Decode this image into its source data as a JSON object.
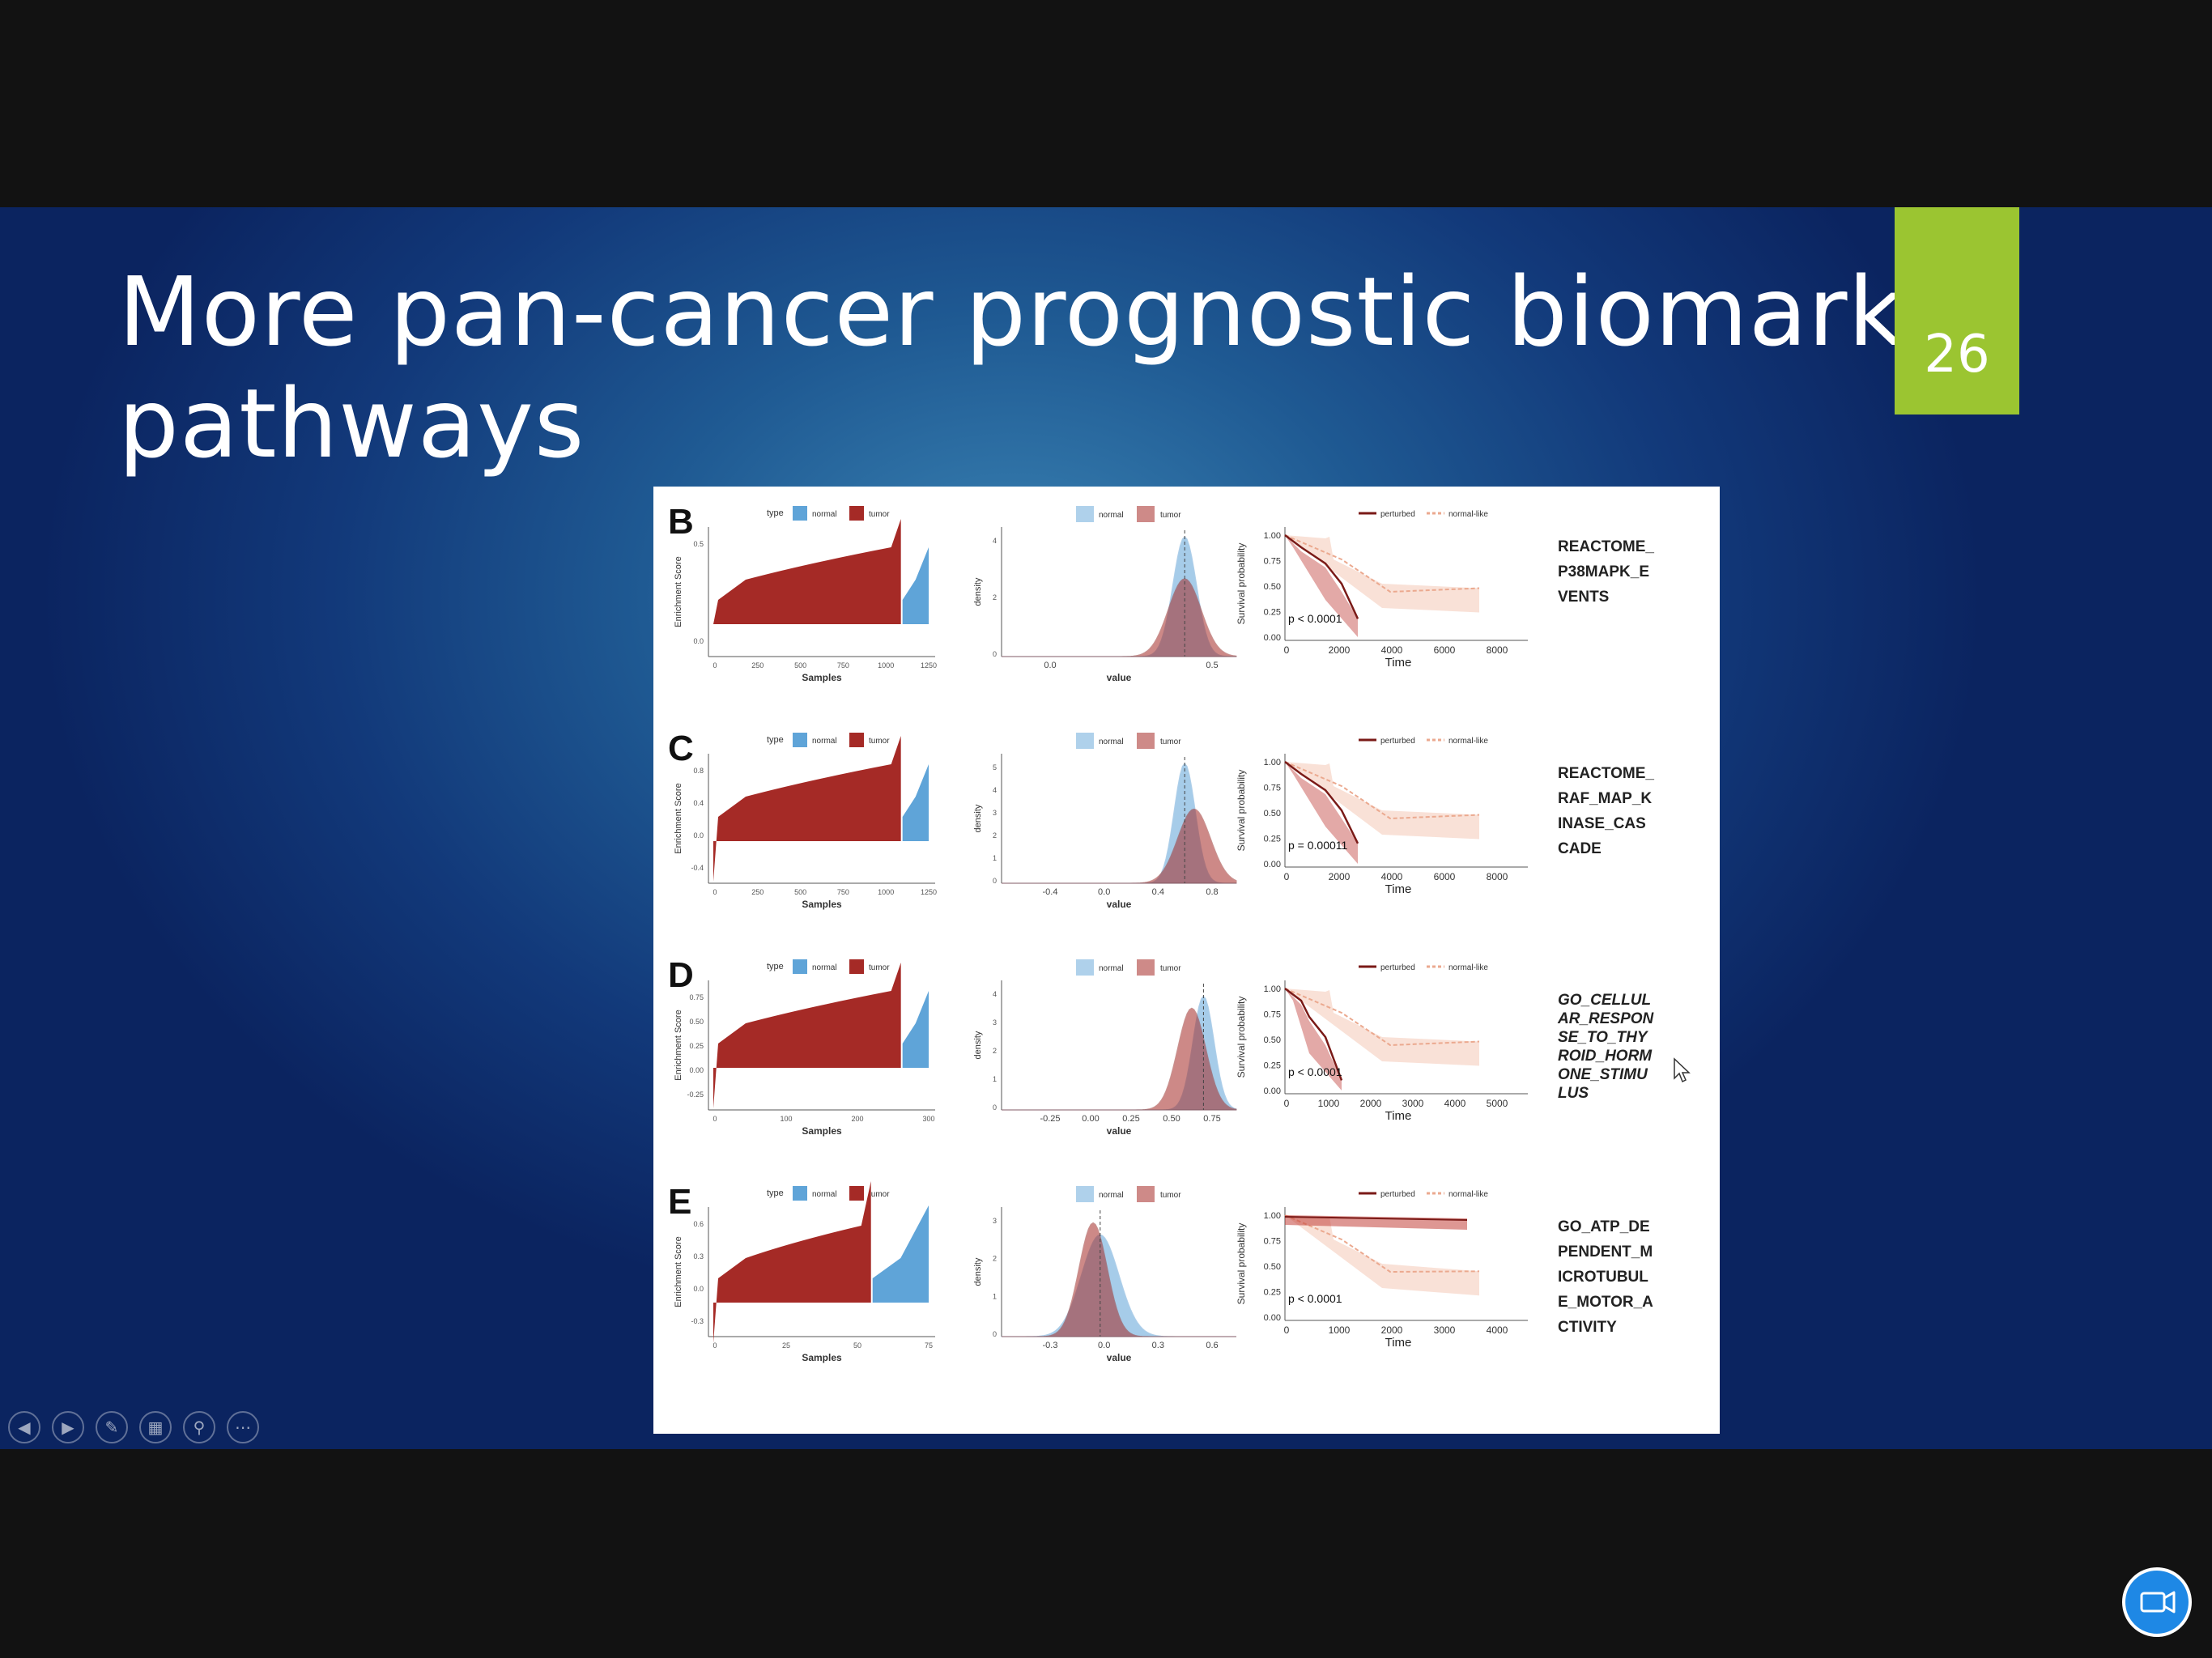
{
  "slide": {
    "title": "More pan-cancer prognostic biomarker\npathways",
    "slide_number": "26"
  },
  "toolbar": {
    "icons": [
      "previous-icon",
      "next-icon",
      "pen-icon",
      "slides-icon",
      "zoom-icon",
      "more-icon"
    ]
  },
  "colors": {
    "tumor": "#a52a26",
    "normal": "#5fa4d8",
    "perturbed": "#7a1a17",
    "normal_like": "#eba98f",
    "slide_number_bg": "#9bc531"
  },
  "figure": {
    "panels": [
      {
        "letter": "B",
        "pathway": "REACTOME_\nP38MAPK_E\nVENTS",
        "pathway_italic": false,
        "pvalue": "p < 0.0001",
        "waterfall": {
          "legend_title": "type",
          "legend": [
            "normal",
            "tumor"
          ],
          "ylabel": "Enrichment Score",
          "xlabel": "Samples",
          "yticks": [
            "0.5",
            "0.0"
          ],
          "xticks": [
            "0",
            "250",
            "500",
            "750",
            "1000",
            "1250"
          ]
        },
        "density": {
          "legend": [
            "normal",
            "tumor"
          ],
          "ylabel": "density",
          "xlabel": "value",
          "yticks": [
            "0",
            "2",
            "4"
          ],
          "xticks": [
            "0.0",
            "0.5"
          ]
        },
        "km": {
          "legend": [
            "perturbed",
            "normal-like"
          ],
          "ylabel": "Survival probability",
          "xlabel": "Time",
          "yticks": [
            "0.00",
            "0.25",
            "0.50",
            "0.75",
            "1.00"
          ],
          "xticks": [
            "0",
            "2000",
            "4000",
            "6000",
            "8000"
          ]
        }
      },
      {
        "letter": "C",
        "pathway": "REACTOME_\nRAF_MAP_K\nINASE_CAS\nCADE",
        "pathway_italic": false,
        "pvalue": "p = 0.00011",
        "waterfall": {
          "legend_title": "type",
          "legend": [
            "normal",
            "tumor"
          ],
          "ylabel": "Enrichment Score",
          "xlabel": "Samples",
          "yticks": [
            "0.8",
            "0.4",
            "0.0",
            "-0.4"
          ],
          "xticks": [
            "0",
            "250",
            "500",
            "750",
            "1000",
            "1250"
          ]
        },
        "density": {
          "legend": [
            "normal",
            "tumor"
          ],
          "ylabel": "density",
          "xlabel": "value",
          "yticks": [
            "0",
            "1",
            "2",
            "3",
            "4",
            "5"
          ],
          "xticks": [
            "-0.4",
            "0.0",
            "0.4",
            "0.8"
          ]
        },
        "km": {
          "legend": [
            "perturbed",
            "normal-like"
          ],
          "ylabel": "Survival probability",
          "xlabel": "Time",
          "yticks": [
            "0.00",
            "0.25",
            "0.50",
            "0.75",
            "1.00"
          ],
          "xticks": [
            "0",
            "2000",
            "4000",
            "6000",
            "8000"
          ]
        }
      },
      {
        "letter": "D",
        "pathway": "GO_CELLUL\nAR_RESPON\nSE_TO_THY\nROID_HORM\nONE_STIMU\nLUS",
        "pathway_italic": true,
        "pvalue": "p < 0.0001",
        "waterfall": {
          "legend_title": "type",
          "legend": [
            "normal",
            "tumor"
          ],
          "ylabel": "Enrichment Score",
          "xlabel": "Samples",
          "yticks": [
            "0.75",
            "0.50",
            "0.25",
            "0.00",
            "-0.25"
          ],
          "xticks": [
            "0",
            "100",
            "200",
            "300"
          ]
        },
        "density": {
          "legend": [
            "normal",
            "tumor"
          ],
          "ylabel": "density",
          "xlabel": "value",
          "yticks": [
            "0",
            "1",
            "2",
            "3",
            "4"
          ],
          "xticks": [
            "-0.25",
            "0.00",
            "0.25",
            "0.50",
            "0.75"
          ]
        },
        "km": {
          "legend": [
            "perturbed",
            "normal-like"
          ],
          "ylabel": "Survival probability",
          "xlabel": "Time",
          "yticks": [
            "0.00",
            "0.25",
            "0.50",
            "0.75",
            "1.00"
          ],
          "xticks": [
            "0",
            "1000",
            "2000",
            "3000",
            "4000",
            "5000"
          ]
        }
      },
      {
        "letter": "E",
        "pathway": "GO_ATP_DE\nPENDENT_M\nICROTUBUL\nE_MOTOR_A\nCTIVITY",
        "pathway_italic": false,
        "pvalue": "p < 0.0001",
        "waterfall": {
          "legend_title": "type",
          "legend": [
            "normal",
            "tumor"
          ],
          "ylabel": "Enrichment Score",
          "xlabel": "Samples",
          "yticks": [
            "0.6",
            "0.3",
            "0.0",
            "-0.3"
          ],
          "xticks": [
            "0",
            "25",
            "50",
            "75"
          ]
        },
        "density": {
          "legend": [
            "normal",
            "tumor"
          ],
          "ylabel": "density",
          "xlabel": "value",
          "yticks": [
            "0",
            "1",
            "2",
            "3"
          ],
          "xticks": [
            "-0.3",
            "0.0",
            "0.3",
            "0.6"
          ]
        },
        "km": {
          "legend": [
            "perturbed",
            "normal-like"
          ],
          "ylabel": "Survival probability",
          "xlabel": "Time",
          "yticks": [
            "0.00",
            "0.25",
            "0.50",
            "0.75",
            "1.00"
          ],
          "xticks": [
            "0",
            "1000",
            "2000",
            "3000",
            "4000"
          ]
        }
      }
    ]
  }
}
